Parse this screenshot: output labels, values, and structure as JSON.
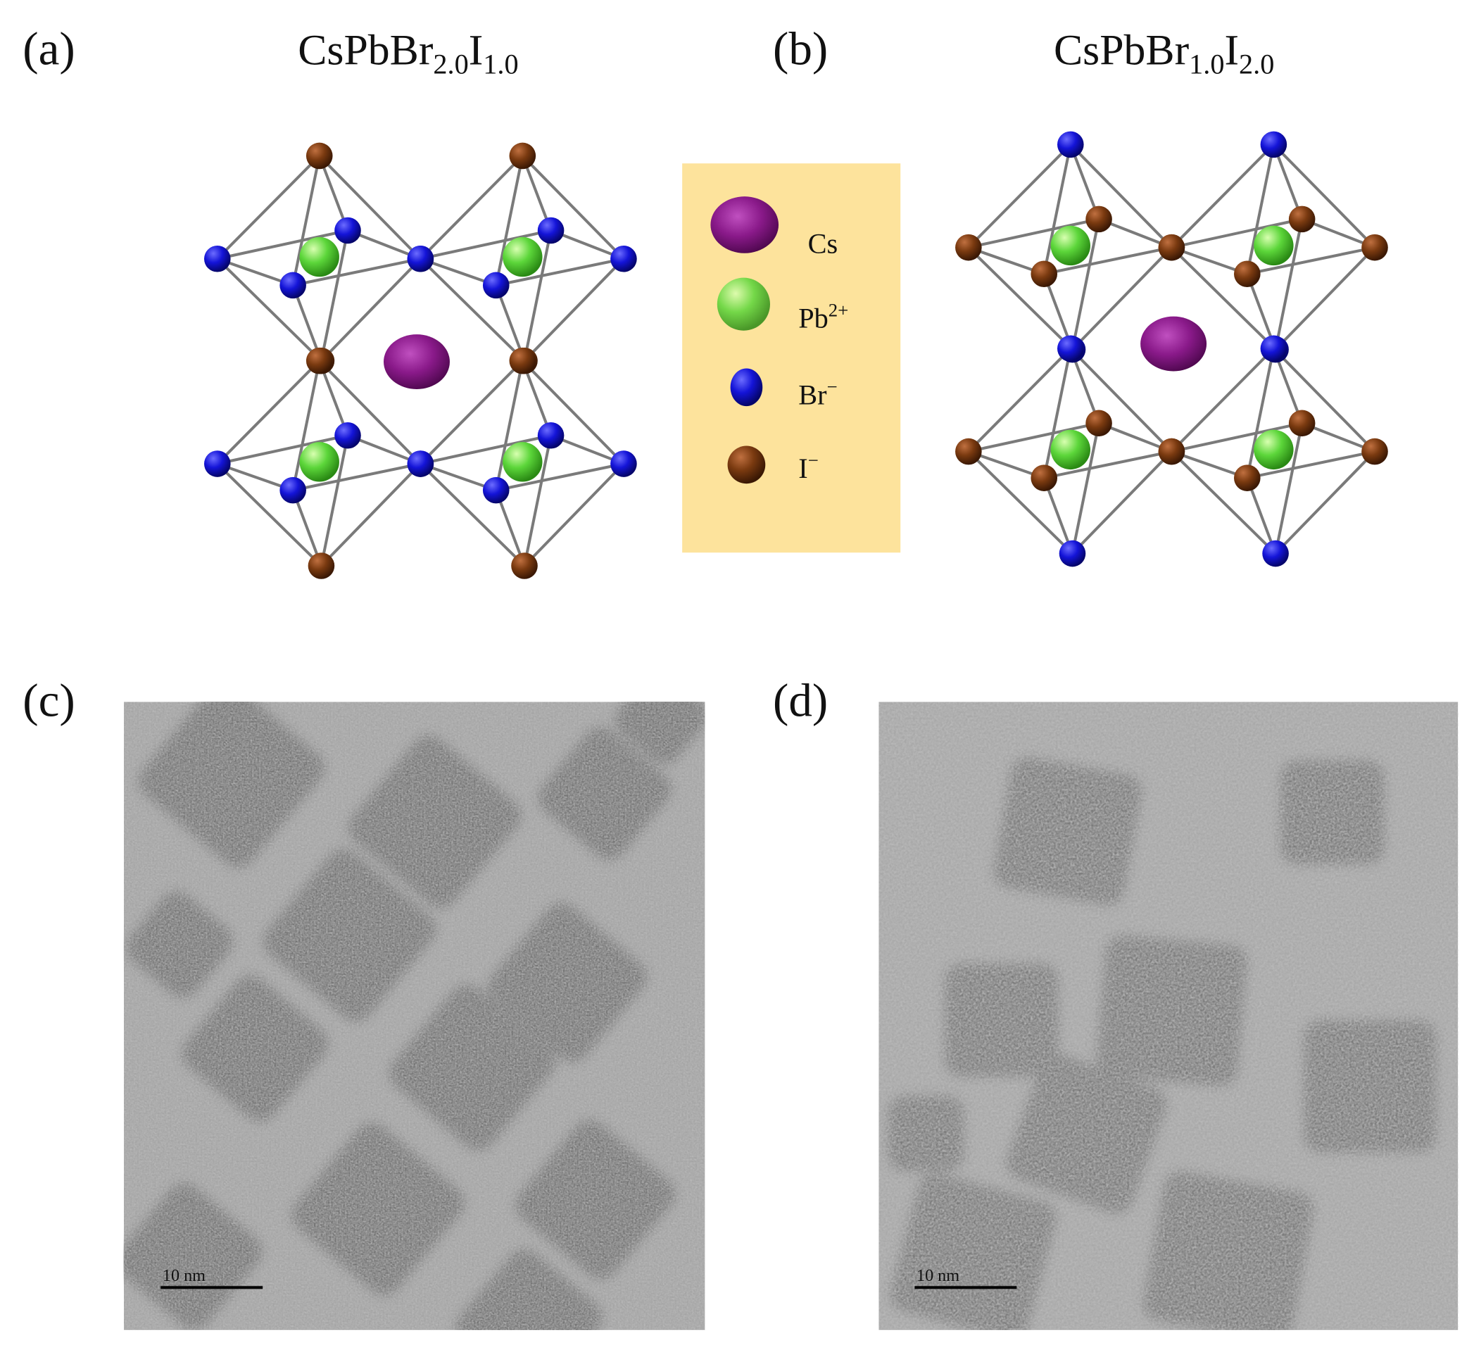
{
  "panels": [
    {
      "label": "(a)",
      "formula": [
        {
          "text": "CsPbBr"
        },
        {
          "sub": "2.0"
        },
        {
          "text": "I"
        },
        {
          "sub": "1.0"
        }
      ]
    },
    {
      "label": "(b)",
      "formula": [
        {
          "text": "CsPbBr"
        },
        {
          "sub": "1.0"
        },
        {
          "text": "I"
        },
        {
          "sub": "2.0"
        }
      ]
    },
    {
      "label": "(c)",
      "scale_bar": "10 nm"
    },
    {
      "label": "(d)",
      "scale_bar": "10 nm"
    }
  ],
  "legend": [
    {
      "symbol": "Cs"
    },
    {
      "symbol": "Pb",
      "charge": "2+"
    },
    {
      "symbol": "Br",
      "charge": "−"
    },
    {
      "symbol": "I",
      "charge": "−"
    }
  ]
}
